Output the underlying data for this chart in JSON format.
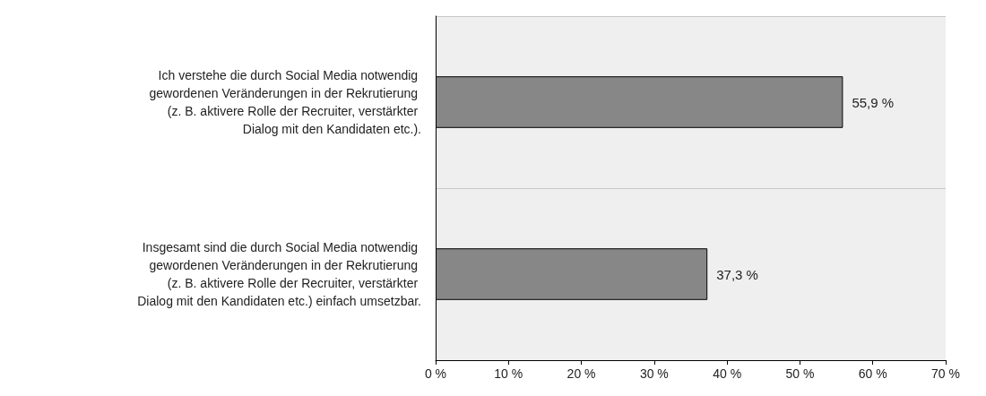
{
  "chart_data": {
    "type": "bar",
    "orientation": "horizontal",
    "categories": [
      "Ich verstehe die durch Social Media notwendig gewordenen Veränderungen in der Rekrutierung (z. B. aktivere Rolle der Recruiter, verstärkter Dialog mit den Kandidaten etc.).",
      "Insgesamt sind die durch Social Media notwendig gewordenen Veränderungen in der Rekrutierung (z. B. aktivere Rolle der Recruiter, verstärkter Dialog mit den Kandidaten etc.) einfach umsetzbar."
    ],
    "values": [
      55.9,
      37.3
    ],
    "value_labels": [
      "55,9 %",
      "37,3 %"
    ],
    "color": "#878787",
    "xlim": [
      0,
      70
    ],
    "xticks": [
      {
        "value": 0,
        "label": "0 %"
      },
      {
        "value": 10,
        "label": "10 %"
      },
      {
        "value": 20,
        "label": "20 %"
      },
      {
        "value": 30,
        "label": "30 %"
      },
      {
        "value": 40,
        "label": "40 %"
      },
      {
        "value": 50,
        "label": "50 %"
      },
      {
        "value": 60,
        "label": "60 %"
      },
      {
        "value": 70,
        "label": "70 %"
      }
    ],
    "grid": "y"
  }
}
